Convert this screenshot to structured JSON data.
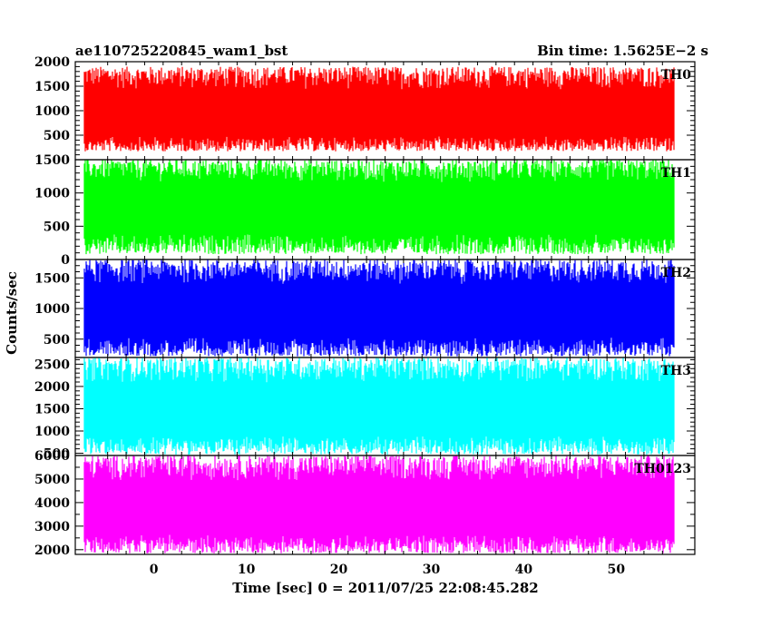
{
  "header": {
    "title": "ae110725220845_wam1_bst",
    "bin_time": "Bin time: 1.5625E−2 s"
  },
  "chart_data": {
    "type": "line",
    "xlabel": "Time [sec] 0 = 2011/07/25 22:08:45.282",
    "ylabel": "Counts/sec",
    "xlim": [
      -8.5,
      58.5
    ],
    "xticks": [
      0,
      10,
      20,
      30,
      40,
      50
    ],
    "x_data_range": [
      -7.5,
      56.2
    ],
    "grid": false,
    "panels": [
      {
        "name": "TH0",
        "color": "#ff0000",
        "ylim": [
          0,
          2000
        ],
        "yticks": [
          500,
          1000,
          1500,
          2000
        ],
        "mean": 850,
        "low": 170,
        "high": 1900
      },
      {
        "name": "TH1",
        "color": "#00ff00",
        "ylim": [
          0,
          1500
        ],
        "yticks": [
          0,
          500,
          1000,
          1500
        ],
        "mean": 750,
        "low": 80,
        "high": 1500
      },
      {
        "name": "TH2",
        "color": "#0000ff",
        "ylim": [
          200,
          1800
        ],
        "yticks": [
          500,
          1000,
          1500
        ],
        "mean": 900,
        "low": 220,
        "high": 1800
      },
      {
        "name": "TH3",
        "color": "#00ffff",
        "ylim": [
          450,
          2650
        ],
        "yticks": [
          500,
          1000,
          1500,
          2000,
          2500
        ],
        "mean": 1400,
        "low": 470,
        "high": 2650
      },
      {
        "name": "TH0123",
        "color": "#ff00ff",
        "ylim": [
          1800,
          6000
        ],
        "yticks": [
          2000,
          3000,
          4000,
          5000,
          6000
        ],
        "mean": 3600,
        "low": 1850,
        "high": 6000
      }
    ]
  }
}
